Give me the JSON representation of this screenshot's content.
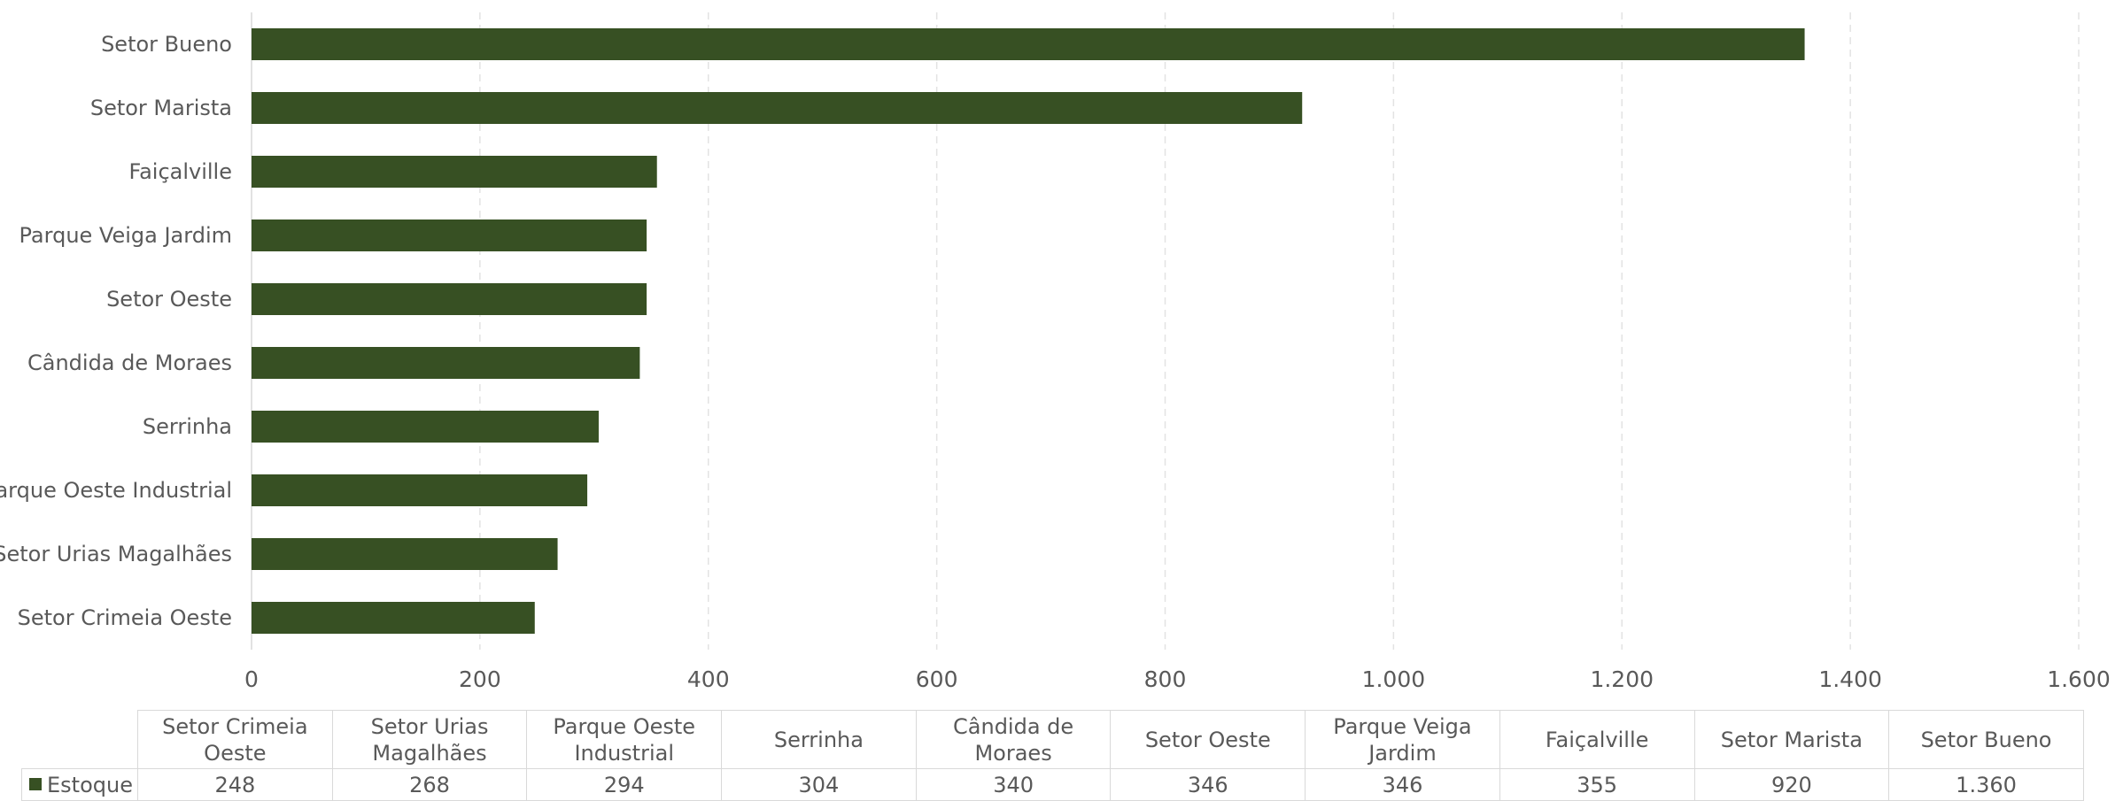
{
  "chart_data": {
    "type": "bar",
    "orientation": "horizontal",
    "categories": [
      "Setor Bueno",
      "Setor Marista",
      "Faiçalville",
      "Parque Veiga Jardim",
      "Setor Oeste",
      "Cândida de Moraes",
      "Serrinha",
      "Parque Oeste Industrial",
      "Setor Urias Magalhães",
      "Setor Crimeia Oeste"
    ],
    "series": [
      {
        "name": "Estoque",
        "values": [
          1360,
          920,
          355,
          346,
          346,
          340,
          304,
          294,
          268,
          248
        ]
      }
    ],
    "xlim": [
      0,
      1600
    ],
    "x_ticks": [
      0,
      200,
      400,
      600,
      800,
      1000,
      1200,
      1400,
      1600
    ],
    "x_tick_labels": [
      "0",
      "200",
      "400",
      "600",
      "800",
      "1.000",
      "1.200",
      "1.400",
      "1.600"
    ],
    "grid": "vertical-dashed",
    "bar_color": "#375023",
    "data_table": {
      "headers": [
        "Setor Crimeia Oeste",
        "Setor Urias Magalhães",
        "Parque Oeste Industrial",
        "Serrinha",
        "Cândida de Moraes",
        "Setor Oeste",
        "Parque Veiga Jardim",
        "Faiçalville",
        "Setor Marista",
        "Setor Bueno"
      ],
      "legend_label": "Estoque",
      "values": [
        "248",
        "268",
        "294",
        "304",
        "340",
        "346",
        "346",
        "355",
        "920",
        "1.360"
      ]
    }
  }
}
